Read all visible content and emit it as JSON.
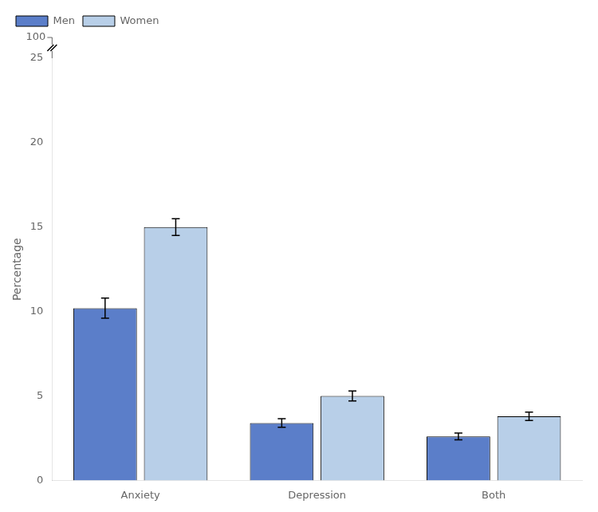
{
  "chart_data": {
    "type": "bar",
    "categories": [
      "Anxiety",
      "Depression",
      "Both"
    ],
    "series": [
      {
        "name": "Men",
        "color": "#5b7ec9",
        "values": [
          10.2,
          3.4,
          2.6
        ],
        "errors": [
          0.6,
          0.25,
          0.2
        ]
      },
      {
        "name": "Women",
        "color": "#b8cfe8",
        "values": [
          15.0,
          5.0,
          3.8
        ],
        "errors": [
          0.5,
          0.3,
          0.25
        ]
      }
    ],
    "ylabel": "Percentage",
    "ylim": [
      0,
      25
    ],
    "yticks": [
      0,
      5,
      10,
      15,
      20,
      25
    ],
    "legend": "upper left",
    "grid": false,
    "annotations": [
      "100"
    ]
  }
}
